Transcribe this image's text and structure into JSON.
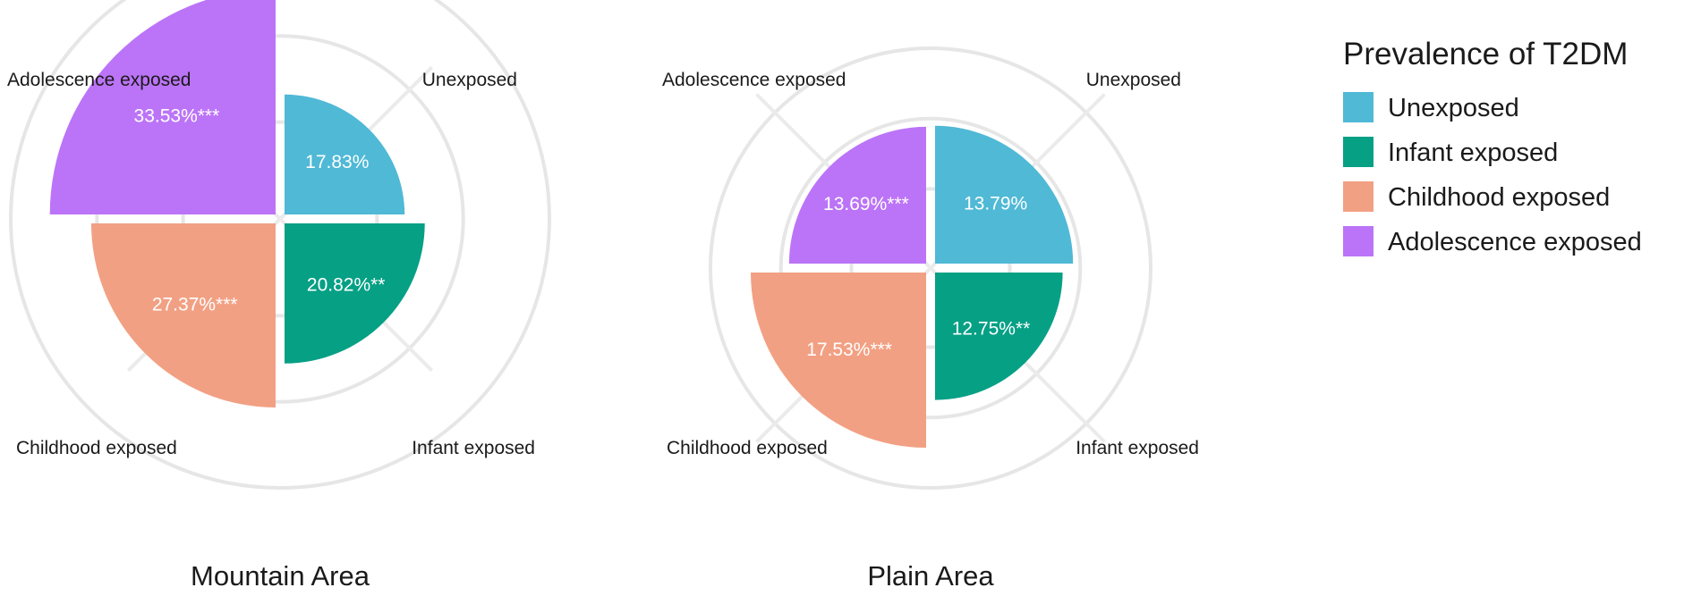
{
  "chart_data": [
    {
      "type": "polar-bar",
      "title": "Mountain Area",
      "categories": [
        "Unexposed",
        "Infant exposed",
        "Childhood exposed",
        "Adolescence exposed"
      ],
      "values": [
        17.83,
        20.82,
        27.37,
        33.53
      ],
      "value_labels": [
        "17.83%",
        "20.82%**",
        "27.37%***",
        "33.53%***"
      ],
      "radial_range": [
        0,
        40
      ],
      "grid": true
    },
    {
      "type": "polar-bar",
      "title": "Plain Area",
      "categories": [
        "Unexposed",
        "Infant exposed",
        "Childhood exposed",
        "Adolescence exposed"
      ],
      "values": [
        13.79,
        12.75,
        17.53,
        13.69
      ],
      "value_labels": [
        "13.79%",
        "12.75%**",
        "17.53%***",
        "13.69%***"
      ],
      "radial_range": [
        0,
        22
      ],
      "grid": true
    }
  ],
  "legend": {
    "title": "Prevalence of T2DM",
    "placement": "right",
    "items": [
      {
        "label": "Unexposed",
        "color": "#4fb9d6"
      },
      {
        "label": "Infant exposed",
        "color": "#06a085"
      },
      {
        "label": "Childhood exposed",
        "color": "#f2a083"
      },
      {
        "label": "Adolescence exposed",
        "color": "#bb74f7"
      }
    ]
  }
}
